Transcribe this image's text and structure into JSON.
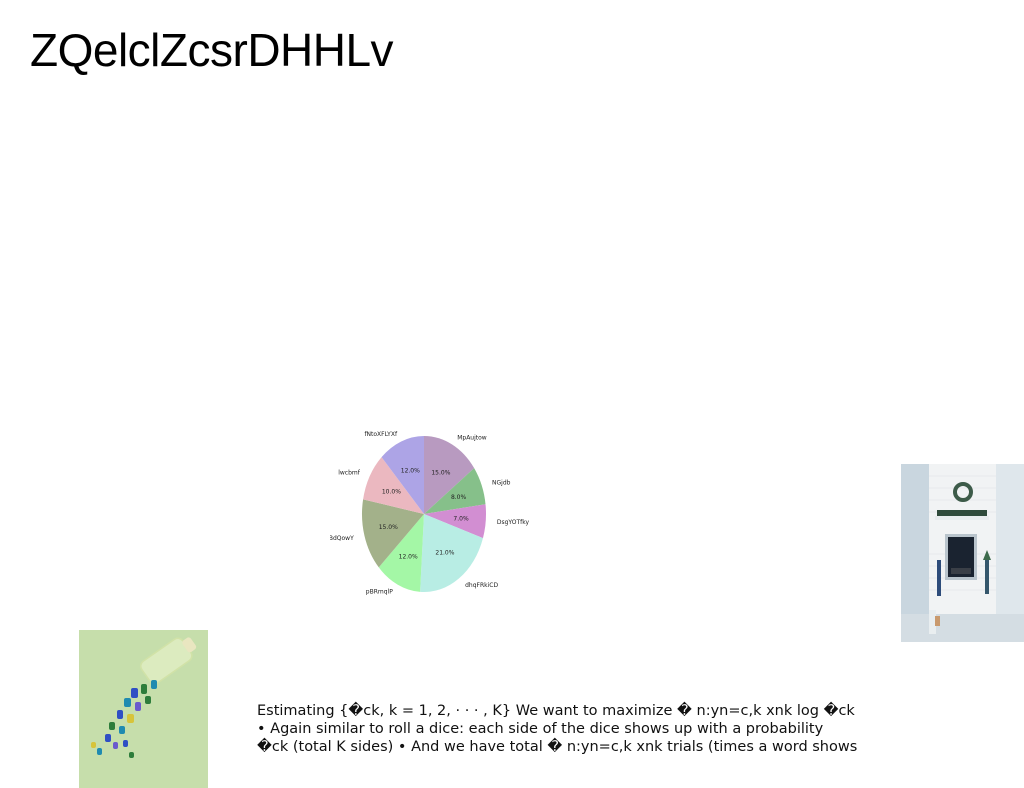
{
  "title": "ZQelclZcsrDHHLv",
  "chart_data": {
    "type": "pie",
    "slices": [
      {
        "label": "MpAujtow",
        "value": 15.0,
        "pct_label": "15.0%",
        "color": "#b89ac0"
      },
      {
        "label": "NGjdb",
        "value": 8.0,
        "pct_label": "8.0%",
        "color": "#86c08a"
      },
      {
        "label": "DsgYOTfky",
        "value": 7.0,
        "pct_label": "7.0%",
        "color": "#d28ed2"
      },
      {
        "label": "dhqFRkiCD",
        "value": 21.0,
        "pct_label": "21.0%",
        "color": "#b8ede4"
      },
      {
        "label": "pBRmqlP",
        "value": 12.0,
        "pct_label": "12.0%",
        "color": "#a4f7a6"
      },
      {
        "label": "nBdQowY",
        "value": 15.0,
        "pct_label": "15.0%",
        "color": "#a3b18a"
      },
      {
        "label": "lwcbmf",
        "value": 10.0,
        "pct_label": "10.0%",
        "color": "#ebb8c0"
      },
      {
        "label": "fNtoXFLYXf",
        "value": 12.0,
        "pct_label": "12.0%",
        "color": "#ada4e6"
      }
    ]
  },
  "paragraph": {
    "lines": [
      "Estimating {�ck, k = 1, 2, · · · , K} We want to maximize � n:yn=c,k xnk log �ck",
      "• Again similar to roll a dice: each side of the dice shows up with a probability",
      "�ck (total K sides) • And we have total � n:yn=c,k xnk trials (times a word shows"
    ]
  },
  "images": {
    "fireplace": "fireplace-photo",
    "bottle": "spilled-bottle-photo"
  }
}
